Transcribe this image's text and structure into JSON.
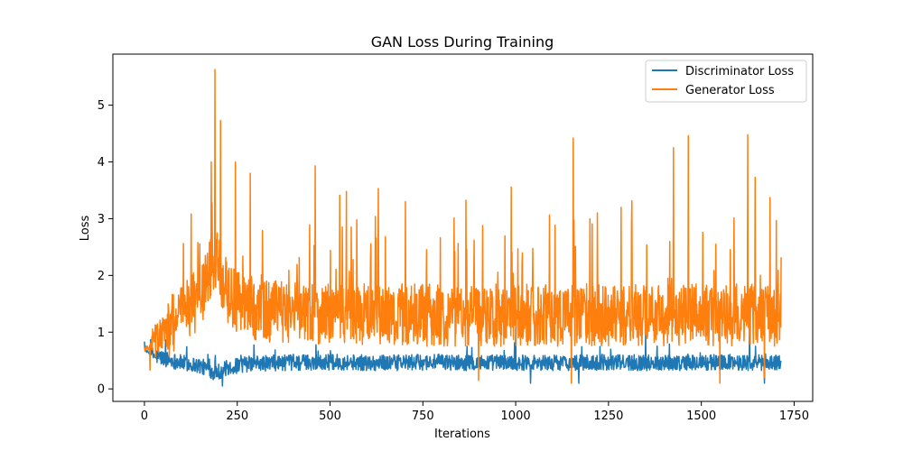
{
  "chart_data": {
    "type": "line",
    "title": "GAN Loss During Training",
    "xlabel": "Iterations",
    "ylabel": "Loss",
    "xlim": [
      -85,
      1800
    ],
    "ylim": [
      -0.22,
      5.9
    ],
    "xticks": [
      0,
      250,
      500,
      750,
      1000,
      1250,
      1500,
      1750
    ],
    "yticks": [
      0,
      1,
      2,
      3,
      4,
      5
    ],
    "grid": false,
    "legend_position": "top-right",
    "n_points": 1716,
    "series": [
      {
        "name": "Discriminator Loss",
        "color": "#1f77b4",
        "x": [
          0,
          15,
          30,
          45,
          60,
          75,
          90,
          100,
          120,
          140,
          160,
          175,
          185,
          195,
          205,
          215,
          230,
          245,
          260,
          280,
          300,
          330,
          360,
          400,
          450,
          500,
          550,
          600,
          650,
          700,
          750,
          800,
          850,
          900,
          950,
          1000,
          1050,
          1100,
          1150,
          1200,
          1250,
          1300,
          1350,
          1400,
          1450,
          1500,
          1550,
          1600,
          1650,
          1680,
          1700,
          1715
        ],
        "y": [
          0.69,
          0.62,
          0.58,
          0.55,
          0.52,
          0.5,
          0.48,
          0.46,
          0.44,
          0.42,
          0.38,
          0.33,
          0.3,
          0.3,
          0.32,
          0.35,
          0.38,
          0.4,
          0.42,
          0.44,
          0.45,
          0.45,
          0.46,
          0.46,
          0.47,
          0.47,
          0.47,
          0.46,
          0.46,
          0.46,
          0.47,
          0.47,
          0.46,
          0.46,
          0.47,
          0.46,
          0.47,
          0.46,
          0.46,
          0.46,
          0.47,
          0.46,
          0.46,
          0.47,
          0.46,
          0.46,
          0.47,
          0.47,
          0.46,
          0.46,
          0.47,
          0.48
        ],
        "low_extremes": [
          [
            210,
            0.05
          ],
          [
            1170,
            0.1
          ],
          [
            1670,
            0.1
          ],
          [
            1040,
            0.1
          ]
        ],
        "high_extremes": [
          [
            1000,
            1.1
          ],
          [
            1350,
            1.0
          ],
          [
            1630,
            1.0
          ]
        ]
      },
      {
        "name": "Generator Loss",
        "color": "#ff7f0e",
        "x": [
          0,
          15,
          30,
          45,
          60,
          75,
          90,
          100,
          120,
          140,
          160,
          175,
          185,
          195,
          205,
          215,
          230,
          245,
          260,
          280,
          300,
          330,
          360,
          400,
          450,
          500,
          550,
          600,
          650,
          700,
          750,
          800,
          850,
          900,
          950,
          1000,
          1050,
          1100,
          1150,
          1200,
          1250,
          1300,
          1350,
          1400,
          1450,
          1500,
          1550,
          1600,
          1650,
          1680,
          1700,
          1715
        ],
        "y": [
          0.7,
          0.75,
          0.85,
          0.95,
          1.05,
          1.15,
          1.25,
          1.35,
          1.45,
          1.55,
          1.75,
          2.05,
          2.25,
          2.25,
          2.05,
          1.85,
          1.65,
          1.55,
          1.5,
          1.45,
          1.4,
          1.38,
          1.36,
          1.35,
          1.34,
          1.33,
          1.32,
          1.31,
          1.3,
          1.3,
          1.3,
          1.3,
          1.3,
          1.3,
          1.3,
          1.3,
          1.3,
          1.3,
          1.3,
          1.3,
          1.3,
          1.3,
          1.3,
          1.3,
          1.3,
          1.3,
          1.3,
          1.3,
          1.3,
          1.3,
          1.3,
          1.25
        ],
        "high_extremes": [
          [
            190,
            5.63
          ],
          [
            205,
            4.73
          ],
          [
            180,
            4.0
          ],
          [
            245,
            4.0
          ],
          [
            285,
            3.8
          ],
          [
            460,
            3.93
          ],
          [
            1155,
            4.42
          ],
          [
            1465,
            4.46
          ],
          [
            1625,
            4.48
          ],
          [
            1425,
            4.25
          ],
          [
            1645,
            3.73
          ],
          [
            1715,
            2.32
          ]
        ],
        "low_extremes": [
          [
            15,
            0.33
          ],
          [
            900,
            0.15
          ],
          [
            1150,
            0.1
          ],
          [
            1550,
            0.1
          ],
          [
            1670,
            0.2
          ]
        ]
      }
    ]
  }
}
